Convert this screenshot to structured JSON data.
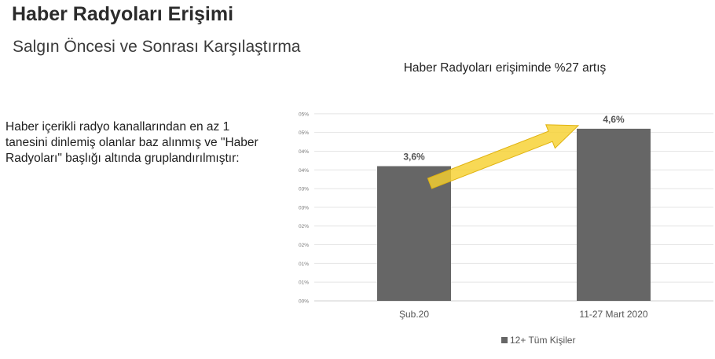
{
  "page": {
    "title": "Haber Radyoları Erişimi",
    "subtitle": "Salgın Öncesi ve Sonrası Karşılaştırma",
    "description": "Haber içerikli radyo kanallarından en az 1 tanesini dinlemiş olanlar baz alınmış ve \"Haber Radyoları\" başlığı altında gruplandırılmıştır:"
  },
  "chart_data": {
    "type": "bar",
    "title": "Haber Radyoları erişiminde %27 artış",
    "categories": [
      "Şub.20",
      "11-27 Mart 2020"
    ],
    "series": [
      {
        "name": "12+ Tüm Kişiler",
        "values": [
          3.6,
          4.6
        ],
        "data_labels": [
          "3,6%",
          "4,6%"
        ],
        "color": "#666666"
      }
    ],
    "y_tick_labels": [
      "00%",
      "01%",
      "01%",
      "02%",
      "02%",
      "03%",
      "03%",
      "04%",
      "04%",
      "05%",
      "05%"
    ],
    "ylim": [
      0,
      5.5
    ],
    "ytick_step": 0.5,
    "grid": true,
    "legend_position": "bottom",
    "annotation": "yellow-arrow-increase",
    "arrow_color": "#f7d130"
  }
}
